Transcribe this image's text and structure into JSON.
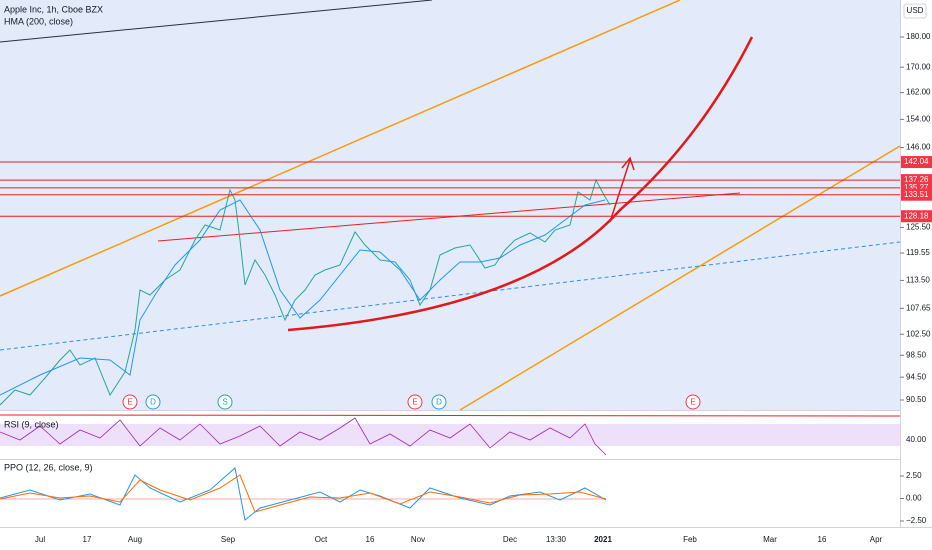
{
  "header": {
    "symbol": "Apple Inc, 1h, Cboe BZX",
    "indicator": "HMA (200, close)"
  },
  "currency": "USD",
  "price_axis": {
    "log": true,
    "ticks": [
      {
        "value": 180,
        "label": "180.00"
      },
      {
        "value": 170,
        "label": "170.00"
      },
      {
        "value": 162,
        "label": "162.00"
      },
      {
        "value": 154,
        "label": "154.00"
      },
      {
        "value": 146,
        "label": "146.00"
      },
      {
        "value": 125.5,
        "label": "125.50"
      },
      {
        "value": 119.55,
        "label": "119.55"
      },
      {
        "value": 113.5,
        "label": "113.50"
      },
      {
        "value": 107.65,
        "label": "107.65"
      },
      {
        "value": 102.5,
        "label": "102.50"
      },
      {
        "value": 98.5,
        "label": "98.50"
      },
      {
        "value": 94.5,
        "label": "94.50"
      },
      {
        "value": 90.5,
        "label": "90.50"
      }
    ]
  },
  "price_tags": [
    {
      "value": 142.04,
      "label": "142.04"
    },
    {
      "value": 137.26,
      "label": "137.26"
    },
    {
      "value": 135.27,
      "label": "135.27"
    },
    {
      "value": 133.51,
      "label": "133.51"
    },
    {
      "value": 128.18,
      "label": "128.18"
    }
  ],
  "events": [
    "E",
    "D",
    "S",
    "E",
    "D",
    "E"
  ],
  "rsi": {
    "title": "RSI (9, close)",
    "ticks": [
      {
        "value": 40,
        "label": "40.00"
      }
    ]
  },
  "ppo": {
    "title": "PPO (12, 26, close, 9)",
    "ticks": [
      {
        "value": 2.5,
        "label": "2.50"
      },
      {
        "value": 0,
        "label": "0.00"
      },
      {
        "value": -2.5,
        "label": "−2.50"
      }
    ]
  },
  "time_axis": [
    "Jul",
    "17",
    "Aug",
    "Sep",
    "Oct",
    "16",
    "Nov",
    "Dec",
    "13:30",
    "2021",
    "Feb",
    "Mar",
    "16",
    "Apr"
  ]
}
